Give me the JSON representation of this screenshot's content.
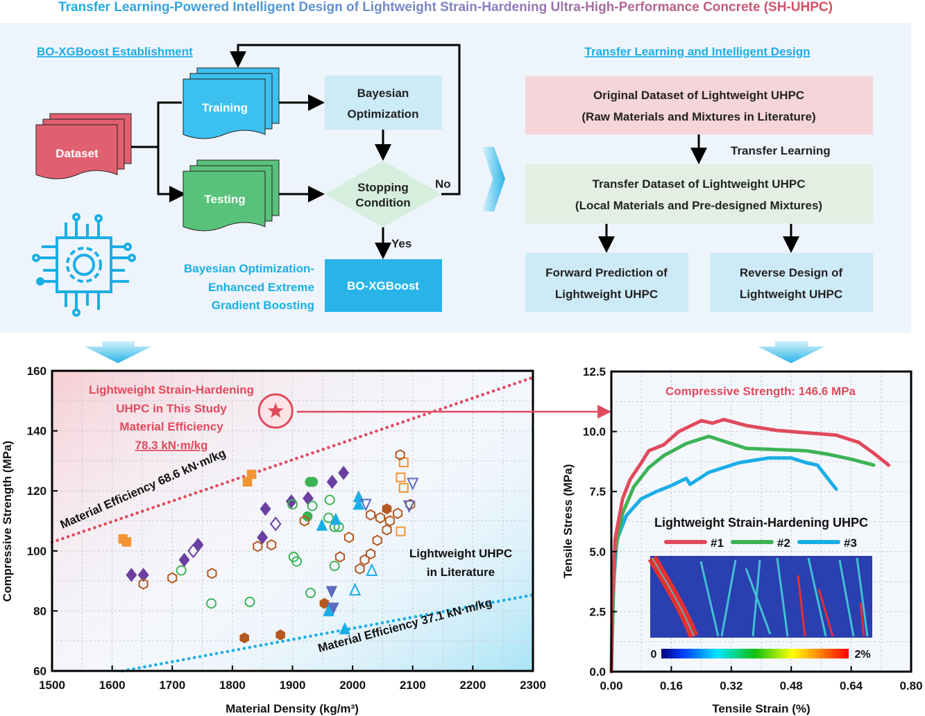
{
  "title": "Transfer Learning-Powered Intelligent Design of Lightweight Strain-Hardening Ultra-High-Performance Concrete (SH-UHPC)",
  "colors": {
    "cyan": "#1aaee6",
    "red": "#e04a5c",
    "green": "#3db356",
    "panel_bg": "#eef4fb"
  },
  "left_flow": {
    "heading": "BO-XGBoost Establishment",
    "dataset": "Dataset",
    "training": "Training",
    "testing": "Testing",
    "bayes_1": "Bayesian",
    "bayes_2": "Optimization",
    "stop_1": "Stopping",
    "stop_2": "Condition",
    "no": "No",
    "yes": "Yes",
    "result": "BO-XGBoost",
    "desc_1": "Bayesian Optimization-",
    "desc_2": "Enhanced Extreme",
    "desc_3": "Gradient Boosting",
    "chip_icon": "circuit-chip-gear-icon"
  },
  "right_flow": {
    "heading": "Transfer Learning and Intelligent Design",
    "original_1": "Original Dataset of Lightweight UHPC",
    "original_2": "(Raw Materials and Mixtures in Literature)",
    "transfer_label": "Transfer Learning",
    "transfer_1": "Transfer Dataset of Lightweight UHPC",
    "transfer_2": "(Local Materials and Pre-designed Mixtures)",
    "forward_1": "Forward Prediction of",
    "forward_2": "Lightweight UHPC",
    "reverse_1": "Reverse Design of",
    "reverse_2": "Lightweight UHPC"
  },
  "chart_data": [
    {
      "type": "scatter",
      "xlabel": "Material Density (kg/m³)",
      "ylabel": "Compressive Strength (MPa)",
      "xlim": [
        1500,
        2300
      ],
      "ylim": [
        60,
        160
      ],
      "xticks": [
        "1500",
        "1600",
        "1700",
        "1800",
        "1900",
        "2000",
        "2100",
        "2200",
        "2300"
      ],
      "yticks": [
        "60",
        "80",
        "100",
        "120",
        "140",
        "160"
      ],
      "grid": true,
      "annotations": {
        "study_1": "Lightweight Strain-Hardening",
        "study_2": "UHPC in This Study",
        "study_3": "Material Efficiency",
        "study_4": "78.3 kN·m/kg",
        "upper_line": "Material Efficiency 68.6 kN·m/kg",
        "lower_line": "Material Efficiency 37.1 kN·m/kg",
        "lit_1": "Lightweight UHPC",
        "lit_2": "in Literature"
      },
      "reference_lines": [
        {
          "efficiency": 68.6,
          "color": "#e04a5c"
        },
        {
          "efficiency": 37.1,
          "color": "#1aaee6"
        }
      ],
      "this_study": {
        "x": 1872,
        "y": 146.6,
        "color": "#e04a5c",
        "marker": "star"
      },
      "series": [
        {
          "marker": "diamond",
          "filled": true,
          "color": "#6b3fa0",
          "points": [
            [
              1632,
              92
            ],
            [
              1652,
              92
            ],
            [
              1720,
              97
            ],
            [
              1743,
              102
            ],
            [
              1850,
              104.5
            ],
            [
              1855,
              114
            ],
            [
              1898,
              116.5
            ],
            [
              1926,
              117.5
            ],
            [
              1966,
              123
            ],
            [
              1985,
              126
            ]
          ]
        },
        {
          "marker": "diamond",
          "filled": false,
          "color": "#6b3fa0",
          "points": [
            [
              1735,
              100
            ],
            [
              1872,
              109
            ]
          ]
        },
        {
          "marker": "square",
          "filled": true,
          "color": "#f39433",
          "points": [
            [
              1618,
              104
            ],
            [
              1624,
              103
            ],
            [
              1825,
              123
            ],
            [
              1832,
              125.5
            ]
          ]
        },
        {
          "marker": "square",
          "filled": false,
          "color": "#f39433",
          "points": [
            [
              2085,
              129.5
            ],
            [
              2080,
              124.5
            ],
            [
              2085,
              121
            ],
            [
              2080,
              106.5
            ]
          ]
        },
        {
          "marker": "circle",
          "filled": false,
          "color": "#3db356",
          "points": [
            [
              1715,
              93.5
            ],
            [
              1765,
              82.5
            ],
            [
              1829,
              83
            ],
            [
              1900,
              115.5
            ],
            [
              1933,
              115
            ],
            [
              1962,
              117
            ],
            [
              1960,
              111
            ],
            [
              1977,
              108
            ],
            [
              1970,
              108
            ],
            [
              1902,
              98
            ],
            [
              1907,
              96.5
            ],
            [
              1970,
              95
            ],
            [
              1930,
              86
            ]
          ]
        },
        {
          "marker": "circle",
          "filled": true,
          "color": "#3db356",
          "points": [
            [
              1929,
              123
            ],
            [
              1934,
              123
            ],
            [
              1925,
              111.5
            ]
          ]
        },
        {
          "marker": "hexagon",
          "filled": false,
          "color": "#b5581f",
          "points": [
            [
              1652,
              89
            ],
            [
              1700,
              91
            ],
            [
              1766,
              92.5
            ],
            [
              1842,
              101.5
            ],
            [
              1865,
              102
            ],
            [
              1920,
              110
            ],
            [
              1994,
              104.5
            ],
            [
              1979,
              98
            ],
            [
              2030,
              112
            ],
            [
              2046,
              111
            ],
            [
              2062,
              110
            ],
            [
              2075,
              112.5
            ],
            [
              2057,
              107
            ],
            [
              2041,
              103.5
            ],
            [
              2079,
              132
            ],
            [
              2096,
              115.5
            ],
            [
              2020,
              97
            ],
            [
              2030,
              99
            ],
            [
              2012,
              94
            ]
          ]
        },
        {
          "marker": "hexagon",
          "filled": true,
          "color": "#b5581f",
          "points": [
            [
              1820,
              71
            ],
            [
              1880,
              72
            ],
            [
              1953,
              82.5
            ],
            [
              2057,
              114
            ]
          ]
        },
        {
          "marker": "triangle-up",
          "filled": true,
          "color": "#1aaee6",
          "points": [
            [
              1949,
              108.5
            ],
            [
              1972,
              110.5
            ],
            [
              2010,
              118
            ],
            [
              2010,
              115.5
            ],
            [
              1960,
              80
            ],
            [
              1987,
              74
            ]
          ]
        },
        {
          "marker": "triangle-up",
          "filled": false,
          "color": "#1aaee6",
          "points": [
            [
              2032,
              93.5
            ],
            [
              2004,
              87
            ]
          ]
        },
        {
          "marker": "triangle-down",
          "filled": true,
          "color": "#5b6bbf",
          "points": [
            [
              1965,
              86.5
            ],
            [
              1968,
              81
            ]
          ]
        },
        {
          "marker": "triangle-down",
          "filled": false,
          "color": "#5b6bbf",
          "points": [
            [
              2022,
              115.5
            ],
            [
              2100,
              122.5
            ],
            [
              2094,
              115
            ]
          ]
        }
      ]
    },
    {
      "type": "line",
      "title": "Compressive Strength: 146.6 MPa",
      "xlabel": "Tensile Strain (%)",
      "ylabel": "Tensile Stress (MPa)",
      "xlim": [
        0,
        0.8
      ],
      "ylim": [
        0,
        12.5
      ],
      "xticks": [
        "0.00",
        "0.16",
        "0.32",
        "0.48",
        "0.64",
        "0.80"
      ],
      "yticks": [
        "0.0",
        "2.5",
        "5.0",
        "7.5",
        "10.0",
        "12.5"
      ],
      "grid": true,
      "legend_title": "Lightweight Strain-Hardening UHPC",
      "legend_placement": "center",
      "colorbar": {
        "min_label": "0",
        "max_label": "2%"
      },
      "series": [
        {
          "name": "#1",
          "color": "#e04a5c",
          "points": [
            [
              0,
              0
            ],
            [
              0.003,
              3
            ],
            [
              0.01,
              5.5
            ],
            [
              0.03,
              7.2
            ],
            [
              0.05,
              8
            ],
            [
              0.08,
              8.7
            ],
            [
              0.1,
              9.2
            ],
            [
              0.14,
              9.45
            ],
            [
              0.18,
              10
            ],
            [
              0.24,
              10.45
            ],
            [
              0.27,
              10.35
            ],
            [
              0.3,
              10.5
            ],
            [
              0.36,
              10.25
            ],
            [
              0.44,
              10.05
            ],
            [
              0.52,
              9.95
            ],
            [
              0.6,
              9.85
            ],
            [
              0.66,
              9.55
            ],
            [
              0.7,
              9.1
            ],
            [
              0.72,
              8.85
            ],
            [
              0.74,
              8.6
            ]
          ]
        },
        {
          "name": "#2",
          "color": "#3db356",
          "points": [
            [
              0,
              0
            ],
            [
              0.005,
              3
            ],
            [
              0.01,
              5
            ],
            [
              0.03,
              6.6
            ],
            [
              0.06,
              7.7
            ],
            [
              0.1,
              8.5
            ],
            [
              0.14,
              9
            ],
            [
              0.2,
              9.5
            ],
            [
              0.26,
              9.8
            ],
            [
              0.3,
              9.6
            ],
            [
              0.36,
              9.3
            ],
            [
              0.44,
              9.25
            ],
            [
              0.52,
              9.2
            ],
            [
              0.58,
              9.05
            ],
            [
              0.64,
              8.85
            ],
            [
              0.7,
              8.6
            ]
          ]
        },
        {
          "name": "#3",
          "color": "#1aaee6",
          "points": [
            [
              0,
              0
            ],
            [
              0.005,
              3.5
            ],
            [
              0.015,
              5.5
            ],
            [
              0.04,
              6.5
            ],
            [
              0.08,
              7.2
            ],
            [
              0.12,
              7.5
            ],
            [
              0.16,
              7.75
            ],
            [
              0.2,
              8.05
            ],
            [
              0.21,
              7.8
            ],
            [
              0.26,
              8.3
            ],
            [
              0.34,
              8.7
            ],
            [
              0.42,
              8.9
            ],
            [
              0.48,
              8.9
            ],
            [
              0.52,
              8.7
            ],
            [
              0.55,
              8.6
            ],
            [
              0.57,
              8.2
            ],
            [
              0.6,
              7.6
            ]
          ]
        }
      ]
    }
  ]
}
